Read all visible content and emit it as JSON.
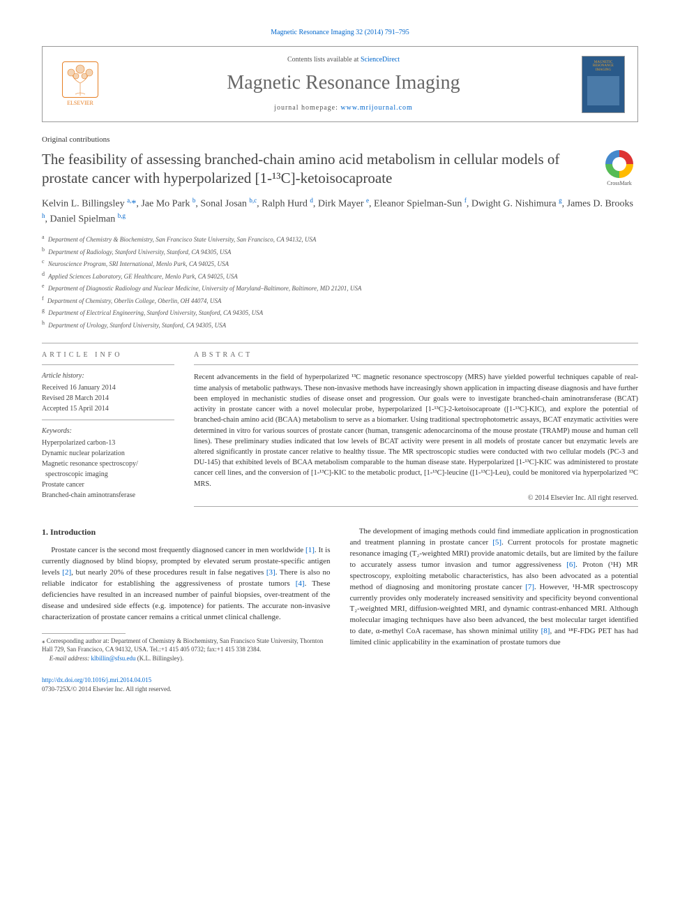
{
  "journal_ref": "Magnetic Resonance Imaging 32 (2014) 791–795",
  "header": {
    "contents_prefix": "Contents lists available at ",
    "contents_link": "ScienceDirect",
    "journal_title": "Magnetic Resonance Imaging",
    "homepage_prefix": "journal homepage: ",
    "homepage_link": "www.mrijournal.com",
    "elsevier_label": "ELSEVIER",
    "cover_line1": "MAGNETIC",
    "cover_line2": "RESONANCE",
    "cover_line3": "IMAGING"
  },
  "article_type": "Original contributions",
  "title": "The feasibility of assessing branched-chain amino acid metabolism in cellular models of prostate cancer with hyperpolarized [1-¹³C]-ketoisocaproate",
  "crossmark_label": "CrossMark",
  "authors_html": "Kelvin L. Billingsley <sup>a,</sup><span class='ast'>*</span>, Jae Mo Park <sup>b</sup>, Sonal Josan <sup>b,c</sup>, Ralph Hurd <sup>d</sup>, Dirk Mayer <sup>e</sup>, Eleanor Spielman-Sun <sup>f</sup>, Dwight G. Nishimura <sup>g</sup>, James D. Brooks <sup>h</sup>, Daniel Spielman <sup>b,g</sup>",
  "affiliations": [
    {
      "sup": "a",
      "text": "Department of Chemistry & Biochemistry, San Francisco State University, San Francisco, CA 94132, USA"
    },
    {
      "sup": "b",
      "text": "Department of Radiology, Stanford University, Stanford, CA 94305, USA"
    },
    {
      "sup": "c",
      "text": "Neuroscience Program, SRI International, Menlo Park, CA 94025, USA"
    },
    {
      "sup": "d",
      "text": "Applied Sciences Laboratory, GE Healthcare, Menlo Park, CA 94025, USA"
    },
    {
      "sup": "e",
      "text": "Department of Diagnostic Radiology and Nuclear Medicine, University of Maryland–Baltimore, Baltimore, MD 21201, USA"
    },
    {
      "sup": "f",
      "text": "Department of Chemistry, Oberlin College, Oberlin, OH 44074, USA"
    },
    {
      "sup": "g",
      "text": "Department of Electrical Engineering, Stanford University, Stanford, CA 94305, USA"
    },
    {
      "sup": "h",
      "text": "Department of Urology, Stanford University, Stanford, CA 94305, USA"
    }
  ],
  "info": {
    "head": "ARTICLE INFO",
    "history_label": "Article history:",
    "history": [
      "Received 16 January 2014",
      "Revised 28 March 2014",
      "Accepted 15 April 2014"
    ],
    "keywords_label": "Keywords:",
    "keywords": [
      "Hyperpolarized carbon-13",
      "Dynamic nuclear polarization",
      "Magnetic resonance spectroscopy/",
      "  spectroscopic imaging",
      "Prostate cancer",
      "Branched-chain aminotransferase"
    ]
  },
  "abstract": {
    "head": "ABSTRACT",
    "text": "Recent advancements in the field of hyperpolarized ¹³C magnetic resonance spectroscopy (MRS) have yielded powerful techniques capable of real-time analysis of metabolic pathways. These non-invasive methods have increasingly shown application in impacting disease diagnosis and have further been employed in mechanistic studies of disease onset and progression. Our goals were to investigate branched-chain aminotransferase (BCAT) activity in prostate cancer with a novel molecular probe, hyperpolarized [1-¹³C]-2-ketoisocaproate ([1-¹³C]-KIC), and explore the potential of branched-chain amino acid (BCAA) metabolism to serve as a biomarker. Using traditional spectrophotometric assays, BCAT enzymatic activities were determined in vitro for various sources of prostate cancer (human, transgenic adenocarcinoma of the mouse prostate (TRAMP) mouse and human cell lines). These preliminary studies indicated that low levels of BCAT activity were present in all models of prostate cancer but enzymatic levels are altered significantly in prostate cancer relative to healthy tissue. The MR spectroscopic studies were conducted with two cellular models (PC-3 and DU-145) that exhibited levels of BCAA metabolism comparable to the human disease state. Hyperpolarized [1-¹³C]-KIC was administered to prostate cancer cell lines, and the conversion of [1-¹³C]-KIC to the metabolic product, [1-¹³C]-leucine ([1-¹³C]-Leu), could be monitored via hyperpolarized ¹³C MRS.",
    "copyright": "© 2014 Elsevier Inc. All right reserved."
  },
  "body": {
    "section_title": "1. Introduction",
    "p1": "Prostate cancer is the second most frequently diagnosed cancer in men worldwide [1]. It is currently diagnosed by blind biopsy, prompted by elevated serum prostate-specific antigen levels [2], but nearly 20% of these procedures result in false negatives [3]. There is also no reliable indicator for establishing the aggressiveness of prostate tumors [4]. These deficiencies have resulted in an increased number of painful biopsies, over-treatment of the disease and undesired side effects (e.g. impotence) for patients. The accurate non-invasive characterization of prostate cancer remains a critical unmet clinical challenge.",
    "p2": "The development of imaging methods could find immediate application in prognostication and treatment planning in prostate cancer [5]. Current protocols for prostate magnetic resonance imaging (T₂-weighted MRI) provide anatomic details, but are limited by the failure to accurately assess tumor invasion and tumor aggressiveness [6]. Proton (¹H) MR spectroscopy, exploiting metabolic characteristics, has also been advocated as a potential method of diagnosing and monitoring prostate cancer [7]. However, ¹H-MR spectroscopy currently provides only moderately increased sensitivity and specificity beyond conventional T₂-weighted MRI, diffusion-weighted MRI, and dynamic contrast-enhanced MRI. Although molecular imaging techniques have also been advanced, the best molecular target identified to date, α-methyl CoA racemase, has shown minimal utility [8], and ¹⁸F-FDG PET has had limited clinic applicability in the examination of prostate tumors due"
  },
  "footnotes": {
    "corr": "⁎ Corresponding author at: Department of Chemistry & Biochemistry, San Francisco State University, Thornton Hall 729, San Francisco, CA 94132, USA. Tel.:+1 415 405 0732; fax:+1 415 338 2384.",
    "email_label": "E-mail address:",
    "email": "klbillin@sfsu.edu",
    "email_who": "(K.L. Billingsley)."
  },
  "doi": {
    "link": "http://dx.doi.org/10.1016/j.mri.2014.04.015",
    "issn": "0730-725X/© 2014 Elsevier Inc. All right reserved."
  },
  "colors": {
    "link": "#0066cc",
    "text": "#333333",
    "muted": "#666666",
    "rule": "#aaaaaa",
    "elsevier": "#e67e22"
  }
}
